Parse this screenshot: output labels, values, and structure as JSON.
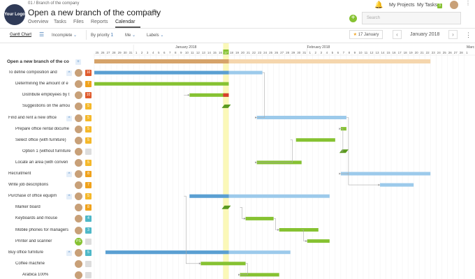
{
  "header": {
    "logo_text": "Your Logo",
    "breadcrumb": "01 / Branch of the company",
    "title": "Open a new branch of the company",
    "tabs": [
      {
        "label": "Overview"
      },
      {
        "label": "Tasks"
      },
      {
        "label": "Files"
      },
      {
        "label": "Reports"
      },
      {
        "label": "Calendar"
      }
    ],
    "active_tab": "Calendar",
    "search_placeholder": "Search",
    "my_projects": "My Projects",
    "my_tasks": "My Tasks",
    "my_tasks_count": "3"
  },
  "toolbar": {
    "view": "Gantt Chart",
    "filter_status": "Incomplete",
    "sort": "By priority",
    "sort_num": "1",
    "assignee": "Me",
    "labels": "Labels",
    "today_btn": "17 January",
    "month": "January 2018"
  },
  "timeline": {
    "month_jan": "January 2018",
    "month_feb": "February 2018",
    "month_mar": "Marc",
    "days": [
      "25",
      "26",
      "27",
      "28",
      "29",
      "30",
      "31",
      "1",
      "2",
      "3",
      "4",
      "5",
      "6",
      "7",
      "8",
      "9",
      "10",
      "11",
      "12",
      "13",
      "14",
      "15",
      "16",
      "17",
      "18",
      "19",
      "20",
      "21",
      "22",
      "23",
      "24",
      "25",
      "26",
      "27",
      "28",
      "29",
      "30",
      "31",
      "1",
      "2",
      "3",
      "4",
      "5",
      "6",
      "7",
      "8",
      "9",
      "10",
      "11",
      "12",
      "13",
      "14",
      "15",
      "16",
      "17",
      "18",
      "19",
      "20",
      "21",
      "22",
      "23",
      "24",
      "25",
      "26",
      "27",
      "28",
      "1"
    ],
    "today_index": 23
  },
  "rows": [
    {
      "label": "Open a new branch of the co",
      "indent": 0,
      "bold": true,
      "avatar": false,
      "badge": "",
      "badge_color": "",
      "add": true
    },
    {
      "label": "To define composition and",
      "indent": 1,
      "avatar": true,
      "badge": "10",
      "badge_color": "#e05a2b",
      "collapse": true
    },
    {
      "label": "Determining the amount of e",
      "indent": 2,
      "avatar": true,
      "badge": "7",
      "badge_color": "#f0a21c"
    },
    {
      "label": "Distribute employees by t",
      "indent": 3,
      "avatar": true,
      "badge": "10",
      "badge_color": "#e05a2b"
    },
    {
      "label": "Suggestions on the amou",
      "indent": 3,
      "avatar": true,
      "badge": "5",
      "badge_color": "#f5b82a"
    },
    {
      "label": "Find and rent a new office",
      "indent": 1,
      "avatar": true,
      "badge": "5",
      "badge_color": "#f5b82a",
      "collapse": true
    },
    {
      "label": "Prepare office rental docume",
      "indent": 2,
      "avatar": true,
      "badge": "5",
      "badge_color": "#f5b82a"
    },
    {
      "label": "Select office (with furniture)",
      "indent": 2,
      "avatar": true,
      "badge": "5",
      "badge_color": "#f5b82a"
    },
    {
      "label": "Option 1 (without furniture",
      "indent": 3,
      "avatar": true,
      "badge": "",
      "badge_color": "#ddd"
    },
    {
      "label": "Locate an area (with conven",
      "indent": 2,
      "avatar": true,
      "badge": "5",
      "badge_color": "#f5b82a"
    },
    {
      "label": "Recruitment",
      "indent": 1,
      "avatar": true,
      "badge": "8",
      "badge_color": "#f0a21c",
      "collapse": true
    },
    {
      "label": "Write job descriptions",
      "indent": 1,
      "avatar": true,
      "badge": "7",
      "badge_color": "#f0a21c"
    },
    {
      "label": "Purchase of office equipm",
      "indent": 1,
      "avatar": true,
      "badge": "5",
      "badge_color": "#f5b82a",
      "collapse": true
    },
    {
      "label": "Marker board",
      "indent": 2,
      "avatar": true,
      "badge": "8",
      "badge_color": "#f0a21c"
    },
    {
      "label": "Keyboards and mouse",
      "indent": 2,
      "avatar": true,
      "badge": "4",
      "badge_color": "#4fb8c8"
    },
    {
      "label": "Mobile phones for managers",
      "indent": 2,
      "avatar": true,
      "badge": "3",
      "badge_color": "#4fb8c8"
    },
    {
      "label": "Printer and scanner",
      "indent": 2,
      "avatar": true,
      "avatar_text": "PS",
      "badge": "",
      "badge_color": "#ddd"
    },
    {
      "label": "Buy office furniture",
      "indent": 1,
      "avatar": true,
      "badge": "5",
      "badge_color": "#4fb8c8",
      "collapse": true
    },
    {
      "label": "Coffee machine",
      "indent": 2,
      "avatar": true,
      "badge": "",
      "badge_color": "#ddd"
    },
    {
      "label": "Arabica 100%",
      "indent": 3,
      "avatar": true,
      "badge": "",
      "badge_color": "#ddd"
    }
  ],
  "bars": [
    {
      "row": 0,
      "start": 0,
      "end": 60,
      "done": 24,
      "kind": "project"
    },
    {
      "row": 1,
      "start": 0,
      "end": 30,
      "done": 24,
      "kind": "parent"
    },
    {
      "row": 2,
      "start": 0,
      "end": 24,
      "done": 24,
      "kind": "task"
    },
    {
      "row": 3,
      "start": 17,
      "end": 24,
      "done": 23,
      "kind": "task",
      "late": true
    },
    {
      "row": 4,
      "start": 23,
      "end": 24,
      "done": 24,
      "kind": "milestone"
    },
    {
      "row": 5,
      "start": 29,
      "end": 45,
      "done": 0,
      "kind": "parent"
    },
    {
      "row": 6,
      "start": 44,
      "end": 45,
      "done": 45,
      "kind": "task"
    },
    {
      "row": 7,
      "start": 36,
      "end": 43,
      "done": 43,
      "kind": "task"
    },
    {
      "row": 8,
      "start": 44,
      "end": 45,
      "done": 45,
      "kind": "milestone"
    },
    {
      "row": 9,
      "start": 29,
      "end": 37,
      "done": 37,
      "kind": "task"
    },
    {
      "row": 10,
      "start": 44,
      "end": 60,
      "done": 0,
      "kind": "parent"
    },
    {
      "row": 11,
      "start": 51,
      "end": 57,
      "done": 0,
      "kind": "parent"
    },
    {
      "row": 12,
      "start": 17,
      "end": 42,
      "done": 24,
      "kind": "parent"
    },
    {
      "row": 13,
      "start": 23,
      "end": 24,
      "done": 24,
      "kind": "milestone"
    },
    {
      "row": 14,
      "start": 27,
      "end": 32,
      "done": 32,
      "kind": "task"
    },
    {
      "row": 15,
      "start": 33,
      "end": 40,
      "done": 40,
      "kind": "task"
    },
    {
      "row": 16,
      "start": 38,
      "end": 42,
      "done": 42,
      "kind": "task"
    },
    {
      "row": 17,
      "start": 2,
      "end": 35,
      "done": 24,
      "kind": "parent"
    },
    {
      "row": 18,
      "start": 19,
      "end": 27,
      "done": 27,
      "kind": "task"
    },
    {
      "row": 19,
      "start": 26,
      "end": 33,
      "done": 33,
      "kind": "task"
    }
  ],
  "colors": {
    "project_done": "#d6a36a",
    "project_todo": "#f5d6ad",
    "parent_done": "#5a9fd2",
    "parent_todo": "#9ccaeb",
    "task": "#86c232",
    "late": "#d93f2c",
    "today": "#fbf8b8",
    "weekend": "#f7f7f7"
  }
}
